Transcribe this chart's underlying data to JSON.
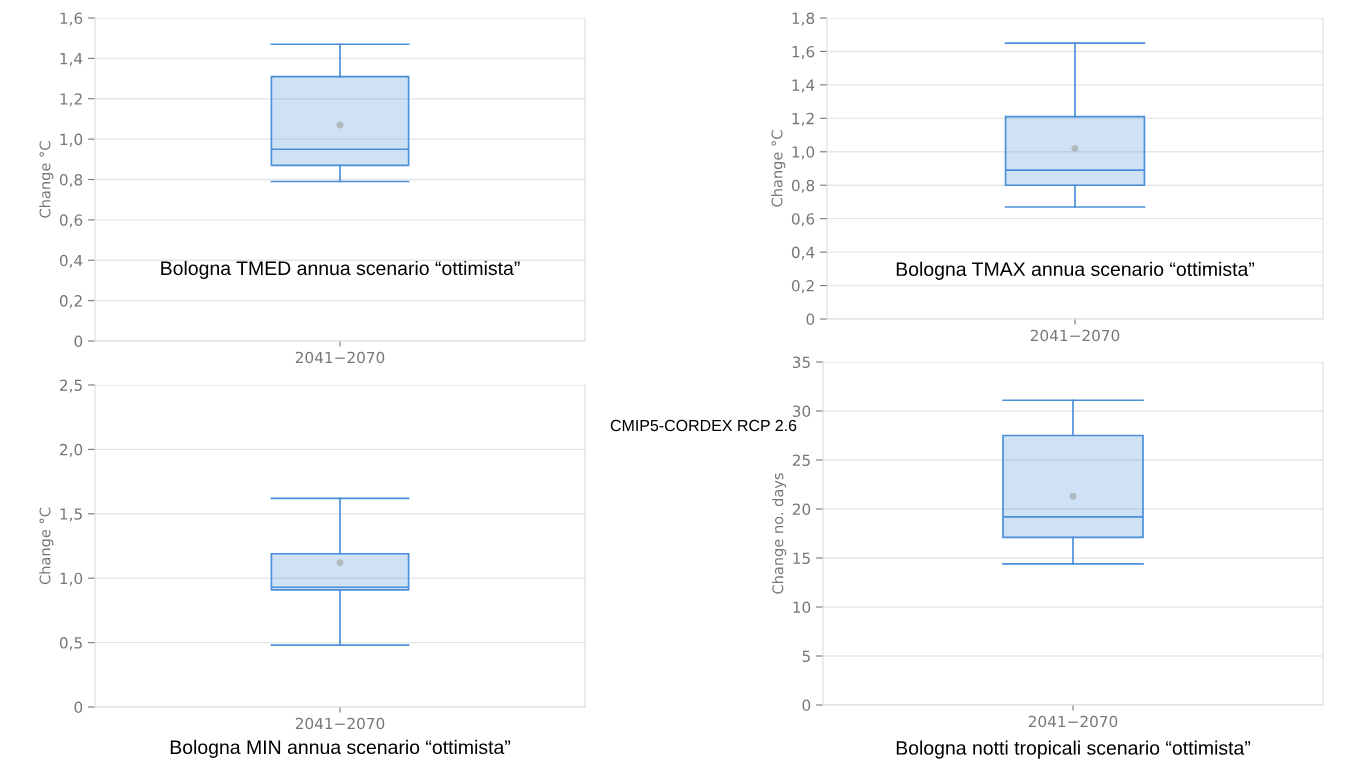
{
  "chart_data": [
    {
      "type": "box",
      "ylabel": "Change °C",
      "categories": [
        "2041−2070"
      ],
      "color": "#4a8fd9",
      "grid": "y",
      "ylim": [
        0,
        1.6
      ],
      "yticks": [
        0,
        {
          "value": 0.2,
          "label": "0,2"
        },
        {
          "value": 0.4,
          "label": "0,4"
        },
        {
          "value": 0.6,
          "label": "0,6"
        },
        {
          "value": 0.8,
          "label": "0,8"
        },
        {
          "value": 1.0,
          "label": "1,0"
        },
        {
          "value": 1.2,
          "label": "1,2"
        },
        {
          "value": 1.4,
          "label": "1,4"
        },
        {
          "value": 1.6,
          "label": "1,6"
        }
      ],
      "boxes": [
        {
          "low": 0.79,
          "q1": 0.87,
          "median": 0.95,
          "q3": 1.31,
          "high": 1.47,
          "mean": 1.07
        }
      ],
      "annotations": [
        "Bologna TMED annua scenario “ottimista”"
      ]
    },
    {
      "type": "box",
      "ylabel": "Change °C",
      "categories": [
        "2041−2070"
      ],
      "color": "#4a8fd9",
      "grid": "y",
      "ylim": [
        0,
        1.8
      ],
      "yticks": [
        0,
        {
          "value": 0.2,
          "label": "0,2"
        },
        {
          "value": 0.4,
          "label": "0,4"
        },
        {
          "value": 0.6,
          "label": "0,6"
        },
        {
          "value": 0.8,
          "label": "0,8"
        },
        {
          "value": 1.0,
          "label": "1,0"
        },
        {
          "value": 1.2,
          "label": "1,2"
        },
        {
          "value": 1.4,
          "label": "1,4"
        },
        {
          "value": 1.6,
          "label": "1,6"
        },
        {
          "value": 1.8,
          "label": "1,8"
        }
      ],
      "boxes": [
        {
          "low": 0.67,
          "q1": 0.8,
          "median": 0.89,
          "q3": 1.21,
          "high": 1.65,
          "mean": 1.02
        }
      ],
      "annotations": [
        "Bologna TMAX annua scenario “ottimista”"
      ]
    },
    {
      "type": "box",
      "ylabel": "Change °C",
      "categories": [
        "2041−2070"
      ],
      "color": "#4a8fd9",
      "grid": "y",
      "ylim": [
        0,
        2.5
      ],
      "yticks": [
        0,
        {
          "value": 0.5,
          "label": "0,5"
        },
        {
          "value": 1.0,
          "label": "1,0"
        },
        {
          "value": 1.5,
          "label": "1,5"
        },
        {
          "value": 2.0,
          "label": "2,0"
        },
        {
          "value": 2.5,
          "label": "2,5"
        }
      ],
      "boxes": [
        {
          "low": 0.48,
          "q1": 0.91,
          "median": 0.93,
          "q3": 1.19,
          "high": 1.62,
          "mean": 1.12
        }
      ],
      "annotations": [
        "Bologna MIN annua scenario “ottimista”",
        "CMIP5-CORDEX RCP 2.6"
      ]
    },
    {
      "type": "box",
      "ylabel": "Change no. days",
      "categories": [
        "2041−2070"
      ],
      "color": "#4a8fd9",
      "grid": "y",
      "ylim": [
        0,
        35
      ],
      "yticks": [
        0,
        5,
        10,
        15,
        20,
        25,
        30,
        35
      ],
      "boxes": [
        {
          "low": 14.4,
          "q1": 17.1,
          "median": 19.2,
          "q3": 27.5,
          "high": 31.1,
          "mean": 21.3
        }
      ],
      "annotations": [
        "Bologna notti tropicali scenario “ottimista”"
      ]
    }
  ]
}
